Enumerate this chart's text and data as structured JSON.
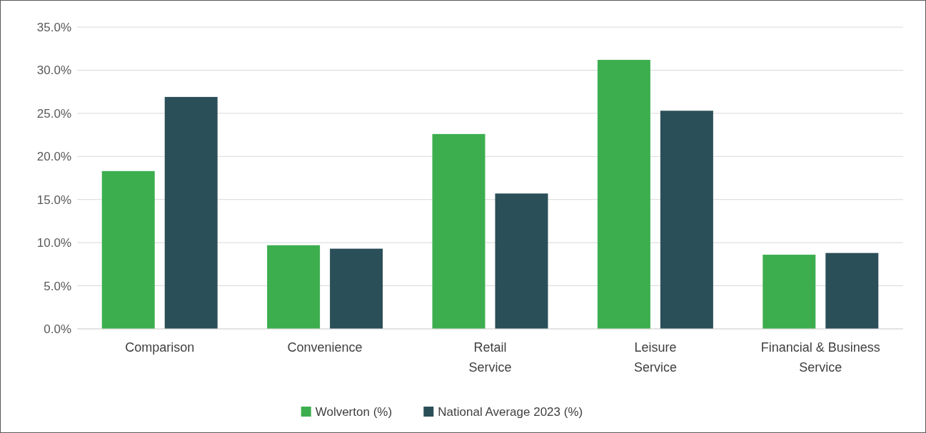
{
  "chart_data": {
    "type": "bar",
    "categories": [
      "Comparison",
      "Convenience",
      "Retail\nService",
      "Leisure\nService",
      "Financial & Business\nService"
    ],
    "series": [
      {
        "name": "Wolverton (%)",
        "color": "#3cae4e",
        "values": [
          18.3,
          9.7,
          22.6,
          31.2,
          8.6
        ]
      },
      {
        "name": "National Average 2023 (%)",
        "color": "#2b4f58",
        "values": [
          26.9,
          9.3,
          15.7,
          25.3,
          8.8
        ]
      }
    ],
    "ylim": [
      0,
      35
    ],
    "yticks": [
      {
        "value": 0,
        "label": "0.0%"
      },
      {
        "value": 5,
        "label": "5.0%"
      },
      {
        "value": 10,
        "label": "10.0%"
      },
      {
        "value": 15,
        "label": "15.0%"
      },
      {
        "value": 20,
        "label": "20.0%"
      },
      {
        "value": 25,
        "label": "25.0%"
      },
      {
        "value": 30,
        "label": "30.0%"
      },
      {
        "value": 35,
        "label": "35.0%"
      }
    ],
    "grid": "y",
    "legend": "bottom"
  }
}
